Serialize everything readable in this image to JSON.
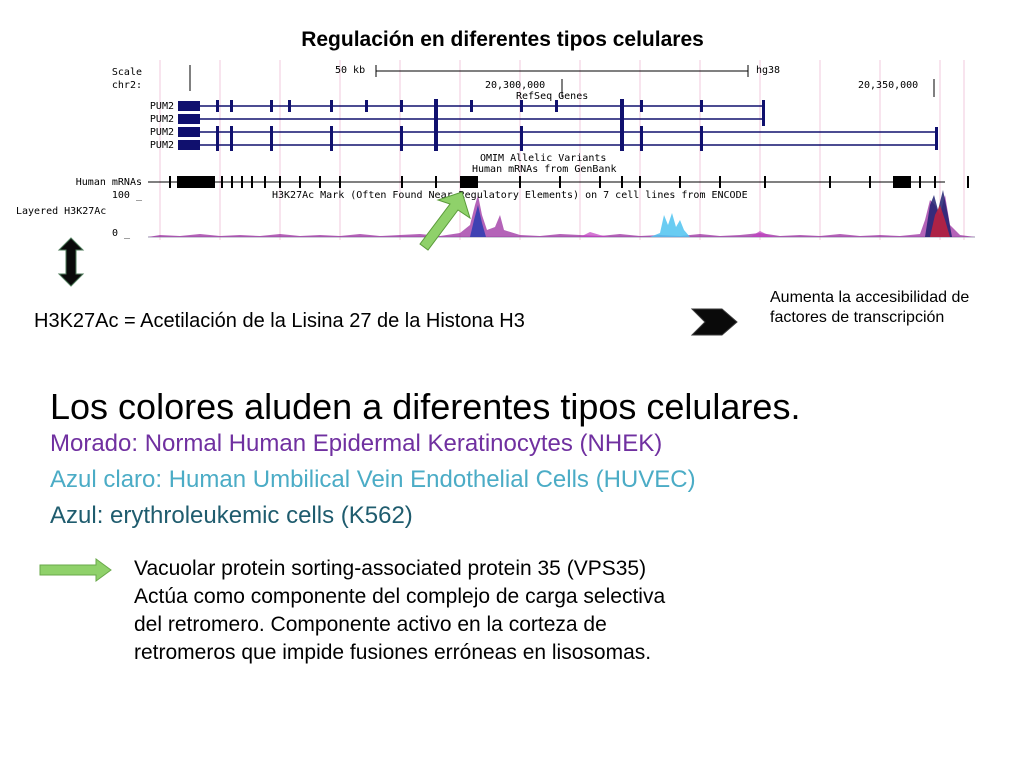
{
  "title": "Regulación en diferentes tipos celulares",
  "browser": {
    "scale_label": "Scale",
    "chr_label": "chr2:",
    "scale_value": "50 kb",
    "assembly": "hg38",
    "coord_1": "20,300,000",
    "coord_2": "20,350,000",
    "refseq_label": "RefSeq Genes",
    "pum2_tracks": [
      "PUM2",
      "PUM2",
      "PUM2",
      "PUM2"
    ],
    "omim_label": "OMIM Allelic Variants",
    "mrna_from_genbank": "Human mRNAs from GenBank",
    "mrna_label": "Human mRNAs",
    "h3k27ac_label": "Layered H3K27Ac",
    "h3k27ac_desc": "H3K27Ac Mark (Often Found Near Regulatory Elements) on 7 cell lines from ENCODE",
    "y_max": "100 _",
    "y_min": "0 _"
  },
  "definition": "H3K27Ac = Acetilación de la Lisina 27 de la Histona H3",
  "note": "Aumenta la accesibilidad de factores de transcripción",
  "colors_heading": "Los colores aluden a diferentes tipos celulares.",
  "color_lines": [
    {
      "text": "Morado: Normal Human Epidermal Keratinocytes (NHEK)",
      "color": "#7030a0"
    },
    {
      "text": "Azul claro: Human Umbilical Vein Endothelial Cells (HUVEC)",
      "color": "#4bacc6"
    },
    {
      "text": "Azul: erythroleukemic cells (K562)",
      "color": "#1f5c6e"
    }
  ],
  "vps_text": [
    "Vacuolar protein sorting-associated protein 35 (VPS35)",
    "Actúa como componente del complejo de carga selectiva",
    "del retromero. Componente activo en la corteza de",
    "retromeros que impide fusiones erróneas en lisosomas."
  ],
  "arrow_colors": {
    "green": "#8fd16a",
    "dark": "#0a0a0a"
  }
}
